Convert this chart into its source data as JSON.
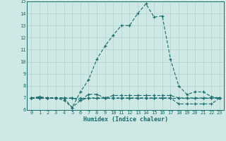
{
  "xlabel": "Humidex (Indice chaleur)",
  "background_color": "#cde8e5",
  "grid_color": "#b8d4d0",
  "line_color": "#1a6b6b",
  "xlim": [
    -0.5,
    23.5
  ],
  "ylim": [
    6,
    15
  ],
  "yticks": [
    6,
    7,
    8,
    9,
    10,
    11,
    12,
    13,
    14,
    15
  ],
  "xticks": [
    0,
    1,
    2,
    3,
    4,
    5,
    6,
    7,
    8,
    9,
    10,
    11,
    12,
    13,
    14,
    15,
    16,
    17,
    18,
    19,
    20,
    21,
    22,
    23
  ],
  "lines": [
    {
      "x": [
        0,
        1,
        2,
        3,
        4,
        5,
        6,
        7,
        8,
        9,
        10,
        11,
        12,
        13,
        14,
        15,
        16,
        17,
        18,
        19,
        20,
        21,
        22,
        23
      ],
      "y": [
        7.0,
        7.0,
        7.0,
        7.0,
        7.0,
        6.2,
        7.5,
        8.5,
        10.2,
        11.3,
        12.2,
        13.0,
        13.0,
        14.0,
        14.8,
        13.7,
        13.8,
        10.2,
        8.0,
        7.3,
        7.5,
        7.5,
        7.1,
        7.0
      ]
    },
    {
      "x": [
        0,
        1,
        2,
        3,
        4,
        5,
        6,
        7,
        8,
        9,
        10,
        11,
        12,
        13,
        14,
        15,
        16,
        17,
        18,
        19,
        20,
        21,
        22,
        23
      ],
      "y": [
        7.0,
        7.1,
        7.0,
        7.0,
        6.8,
        6.2,
        6.8,
        7.3,
        7.3,
        7.0,
        7.0,
        7.0,
        7.0,
        7.0,
        7.0,
        7.0,
        7.0,
        7.0,
        6.5,
        6.5,
        6.5,
        6.5,
        6.5,
        7.0
      ]
    },
    {
      "x": [
        0,
        1,
        2,
        3,
        4,
        5,
        6,
        7,
        8,
        9,
        10,
        11,
        12,
        13,
        14,
        15,
        16,
        17,
        18,
        19,
        20,
        21,
        22,
        23
      ],
      "y": [
        7.0,
        7.0,
        7.0,
        7.0,
        7.0,
        7.0,
        6.8,
        7.0,
        7.0,
        7.0,
        7.2,
        7.2,
        7.2,
        7.2,
        7.2,
        7.2,
        7.2,
        7.2,
        7.0,
        7.0,
        7.0,
        7.0,
        7.0,
        7.0
      ]
    },
    {
      "x": [
        0,
        1,
        2,
        3,
        4,
        5,
        6,
        7,
        8,
        9,
        10,
        11,
        12,
        13,
        14,
        15,
        16,
        17,
        18,
        19,
        20,
        21,
        22,
        23
      ],
      "y": [
        7.0,
        7.0,
        7.0,
        7.0,
        7.0,
        7.0,
        7.0,
        7.0,
        7.0,
        7.0,
        7.0,
        7.0,
        7.0,
        7.0,
        7.0,
        7.0,
        7.0,
        7.0,
        7.0,
        7.0,
        7.0,
        7.0,
        7.0,
        7.0
      ]
    }
  ]
}
